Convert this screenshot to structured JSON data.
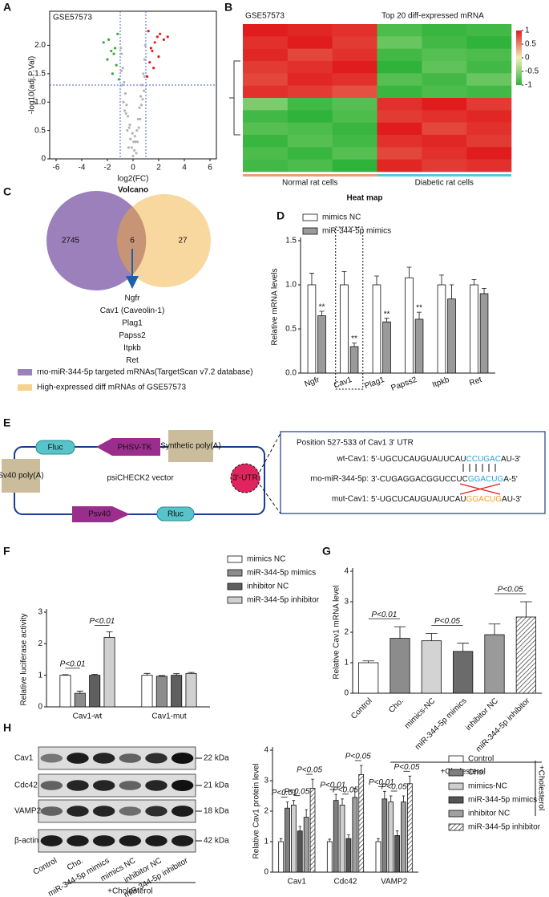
{
  "panel_letters": [
    "A",
    "B",
    "C",
    "D",
    "E",
    "F",
    "G",
    "H"
  ],
  "chart_data": [
    {
      "type": "scatter",
      "title": "GSE57573",
      "x_label": "log2(FC)",
      "y_label": "-log10(adj.P.Val)",
      "caption": "Volcano",
      "xlim": [
        -6.5,
        6.5
      ],
      "xticks": [
        -6,
        -4,
        -2,
        0,
        2,
        4,
        6
      ],
      "ylim": [
        0,
        2.6
      ],
      "yticks": [
        0,
        0.5,
        {
          "value": 1,
          "label": "1.0"
        },
        1.5,
        {
          "value": 2,
          "label": "2.0"
        }
      ],
      "thresholds": {
        "x": [
          -1,
          1
        ],
        "y": 1.3
      },
      "series": [
        {
          "color": "#b5b5b5",
          "x": [
            0,
            0.1,
            -0.1,
            0.2,
            -0.2,
            0.3,
            -0.3,
            0.4,
            -0.4,
            0.5,
            -0.5,
            0.6,
            -0.6,
            0.7,
            -0.7,
            0.8,
            -0.8,
            0.9,
            -0.9,
            0.95,
            -0.95,
            0.15,
            -0.25,
            0.45,
            -0.55,
            0.65,
            -0.75,
            0.85,
            -0.85,
            0.35,
            -0.45,
            0.55,
            -0.65,
            0.75,
            -0.9,
            0.9,
            0.05,
            -0.05,
            0.25,
            -0.35
          ],
          "y": [
            0.05,
            0.15,
            0.2,
            0.3,
            0.35,
            0.5,
            0.55,
            0.7,
            0.75,
            0.9,
            0.95,
            1.1,
            1.15,
            1.3,
            1.35,
            1.5,
            1.6,
            1.75,
            1.85,
            2.0,
            1.95,
            0.4,
            0.6,
            0.55,
            0.8,
            0.95,
            1.0,
            1.2,
            1.3,
            0.3,
            0.5,
            0.7,
            0.85,
            1.05,
            1.55,
            1.45,
            0.3,
            0.45,
            0.1,
            0.2
          ]
        },
        {
          "color": "#e02020",
          "x": [
            1.1,
            1.3,
            1.5,
            1.7,
            1.9,
            2.1,
            1.2,
            1.6,
            2.4,
            1.4,
            2.0,
            2.7
          ],
          "y": [
            1.45,
            1.7,
            1.9,
            2.05,
            2.15,
            2.2,
            2.25,
            1.6,
            2.1,
            1.95,
            1.8,
            2.15
          ]
        },
        {
          "color": "#3aa83a",
          "x": [
            -1.1,
            -1.3,
            -1.5,
            -1.7,
            -1.9,
            -1.2,
            -1.6,
            -2.3,
            -1.4,
            -2.0
          ],
          "y": [
            1.4,
            1.65,
            1.85,
            1.9,
            2.1,
            2.2,
            1.5,
            2.05,
            1.95,
            1.75
          ]
        }
      ]
    },
    {
      "type": "heatmap",
      "title": "GSE57573",
      "subtitle": "Top 20 diff-expressed mRNA",
      "caption": "Heat map",
      "groups": [
        "Normal rat cells",
        "Diabetic rat cells"
      ],
      "group_colors": [
        "#e8a07a",
        "#5bc8d8"
      ],
      "zlim": [
        -1,
        1
      ],
      "zticks": [
        1,
        0.5,
        0,
        -0.5,
        -1
      ],
      "colorscale": [
        "#2fb33a",
        "#f0eeb8",
        "#e01c1c"
      ],
      "values": [
        [
          1,
          0.95,
          0.9,
          -0.85,
          -0.95,
          -0.9
        ],
        [
          0.9,
          1,
          0.85,
          -0.7,
          -0.9,
          -1
        ],
        [
          0.95,
          0.8,
          0.9,
          -0.9,
          -0.8,
          -0.85
        ],
        [
          0.85,
          0.9,
          1,
          -1,
          -0.75,
          -0.9
        ],
        [
          0.8,
          0.95,
          0.9,
          -0.8,
          -0.9,
          -0.7
        ],
        [
          0.9,
          0.85,
          0.75,
          -0.95,
          -0.85,
          -0.9
        ],
        [
          -0.6,
          -0.9,
          -0.8,
          0.9,
          1,
          0.85
        ],
        [
          -0.9,
          -1,
          -0.85,
          0.85,
          0.9,
          0.95
        ],
        [
          -0.8,
          -0.85,
          -0.95,
          1,
          0.8,
          0.9
        ],
        [
          -0.95,
          -0.8,
          -0.9,
          0.9,
          0.95,
          0.85
        ],
        [
          -0.85,
          -0.95,
          -0.8,
          0.8,
          0.9,
          1
        ],
        [
          -0.9,
          -0.85,
          -1,
          0.95,
          0.85,
          0.9
        ]
      ]
    },
    {
      "type": "bar",
      "y_label": "Relative mRNA levels",
      "categories": [
        "Ngfr",
        "Cav1",
        "Plag1",
        "Papss2",
        "Itpkb",
        "Ret"
      ],
      "ylim": [
        0,
        1.5
      ],
      "yticks": [
        {
          "value": 0,
          "label": "0.0"
        },
        0.5,
        {
          "value": 1,
          "label": "1.0"
        },
        1.5
      ],
      "series": [
        {
          "name": "mimics NC",
          "color": "#ffffff",
          "values": [
            1.0,
            1.0,
            1.0,
            1.08,
            1.0,
            1.0
          ],
          "errors": [
            0.13,
            0.15,
            0.1,
            0.12,
            0.11,
            0.06
          ]
        },
        {
          "name": "miR-344-5p mimics",
          "color": "#9a9a9a",
          "values": [
            0.65,
            0.3,
            0.58,
            0.61,
            0.84,
            0.9
          ],
          "errors": [
            0.05,
            0.04,
            0.04,
            0.08,
            0.16,
            0.06
          ]
        }
      ],
      "annotations": [
        "**",
        "**",
        "**",
        "**"
      ]
    },
    {
      "type": "bar",
      "y_label": "Relative luciferase activity",
      "categories": [
        "Cav1-wt",
        "Cav1-mut"
      ],
      "ylim": [
        0,
        3
      ],
      "yticks": [
        0,
        1,
        2,
        3
      ],
      "series": [
        {
          "name": "mimics NC",
          "color": "#ffffff",
          "values": [
            1.0,
            1.0
          ],
          "errors": [
            0.02,
            0.06
          ]
        },
        {
          "name": "miR-344-5p mimics",
          "color": "#8c8c8c",
          "values": [
            0.43,
            0.97
          ],
          "errors": [
            0.07,
            0.02
          ]
        },
        {
          "name": "inhibitor NC",
          "color": "#5f5f5f",
          "values": [
            1.0,
            1.0
          ],
          "errors": [
            0.03,
            0.05
          ]
        },
        {
          "name": "miR-344-5p inhibitor",
          "color": "#d0d0d0",
          "values": [
            2.2,
            1.06
          ],
          "errors": [
            0.18,
            0.03
          ]
        }
      ],
      "annotations": [
        "P<0.01",
        "P<0.01"
      ]
    },
    {
      "type": "bar",
      "y_label": "Relative Cav1 mRNA level",
      "note": "+Cholesterol",
      "categories": [
        "Control",
        "Cho.",
        "mimics-NC",
        "miR-344-5p mimics",
        "inhibitor NC",
        "miR-344-5p inhibitor"
      ],
      "ylim": [
        0,
        4
      ],
      "yticks": [
        0,
        1,
        2,
        3,
        4
      ],
      "series": [
        {
          "colors": [
            "#ffffff",
            "#8c8c8c",
            "#d3d3d3",
            "#6b6b6b",
            "#9a9a9a",
            "#ffffff"
          ],
          "hatched": [
            false,
            false,
            false,
            false,
            false,
            true
          ],
          "values": [
            1.0,
            1.8,
            1.72,
            1.37,
            1.92,
            2.5
          ],
          "errors": [
            0.06,
            0.38,
            0.24,
            0.27,
            0.35,
            0.5
          ]
        }
      ],
      "annotations": [
        "P<0.01",
        "P<0.05",
        "P<0.05"
      ]
    },
    {
      "type": "bar",
      "y_label": "Relative Cav1 protein level",
      "note": "+Cholesterol",
      "categories": [
        "Cav1",
        "Cdc42",
        "VAMP2"
      ],
      "ylim": [
        0,
        4
      ],
      "yticks": [
        0,
        1,
        2,
        3,
        4
      ],
      "series": [
        {
          "name": "Control",
          "color": "#ffffff",
          "values": [
            1.0,
            1.0,
            1.0
          ],
          "errors": [
            0.1,
            0.08,
            0.1
          ]
        },
        {
          "name": "Cho.",
          "color": "#7f7f7f",
          "values": [
            2.1,
            2.35,
            2.4
          ],
          "errors": [
            0.2,
            0.2,
            0.25
          ]
        },
        {
          "name": "mimics-NC",
          "color": "#cfcfcf",
          "values": [
            2.2,
            2.2,
            2.3
          ],
          "errors": [
            0.15,
            0.2,
            0.2
          ]
        },
        {
          "name": "miR-344-5p mimics",
          "color": "#555555",
          "values": [
            1.35,
            1.1,
            1.2
          ],
          "errors": [
            0.15,
            0.12,
            0.15
          ]
        },
        {
          "name": "inhibitor NC",
          "color": "#a0a0a0",
          "values": [
            1.8,
            2.45,
            2.3
          ],
          "errors": [
            0.25,
            0.3,
            0.2
          ]
        },
        {
          "name": "miR-344-5p inhibitor",
          "color": "#ffffff",
          "hatch": true,
          "values": [
            2.75,
            3.2,
            2.9
          ],
          "errors": [
            0.3,
            0.3,
            0.25
          ]
        }
      ],
      "annotations": [
        "P<0.01",
        "P<0.05",
        "P<0.05",
        "P<0.01",
        "P<0.05",
        "P<0.05",
        "P<0.01",
        "P<0.05",
        "P<0.05"
      ]
    }
  ],
  "venn": {
    "left": "2745",
    "overlap": "6",
    "right": "27",
    "genes": [
      "Ngfr",
      "Cav1 (Caveolin-1)",
      "Plag1",
      "Papss2",
      "Itpkb",
      "Ret"
    ],
    "legend": [
      "rno-miR-344-5p targeted mRNAs(TargetScan v7.2 database)",
      "High-expressed diff mRNAs of GSE57573"
    ]
  },
  "vector": {
    "name": "psiCHECK2 vector",
    "fluc": "Fluc",
    "phsv": "PHSV-TK",
    "synthetic": "Synthetic poly(A)",
    "sv40": "Sv40 poly(A)",
    "utr": "3'-UTR",
    "psv40": "Psv40",
    "rluc": "Rluc",
    "box_title": "Position 527-533 of Cav1 3' UTR",
    "sequences": [
      {
        "label": "wt-Cav1:",
        "parts": [
          "5'-UGCUCAUGUAUUCAU",
          "CCUGAC",
          "AU-3'"
        ]
      },
      {
        "label": "rno-miR-344-5p:",
        "parts": [
          "3'-CUGAGGACGGUCCUC",
          "GGACUG",
          "A-5'"
        ]
      },
      {
        "label": "mut-Cav1:",
        "parts": [
          "5'-UGCUCAUGUAUUCAU",
          "GGACUG",
          "AU-3'"
        ]
      }
    ]
  },
  "blot": {
    "rows": [
      "Cav1",
      "Cdc42",
      "VAMP2",
      "β-actin"
    ],
    "sizes": [
      "22 kDa",
      "21 kDa",
      "18 kDa",
      "42 kDa"
    ],
    "lanes": [
      "Control",
      "Cho.",
      "miR-344-5p mimics",
      "mimics NC",
      "inhibitor NC",
      "miR-344-5p inhibitor"
    ],
    "note": "+Cholesterol"
  }
}
